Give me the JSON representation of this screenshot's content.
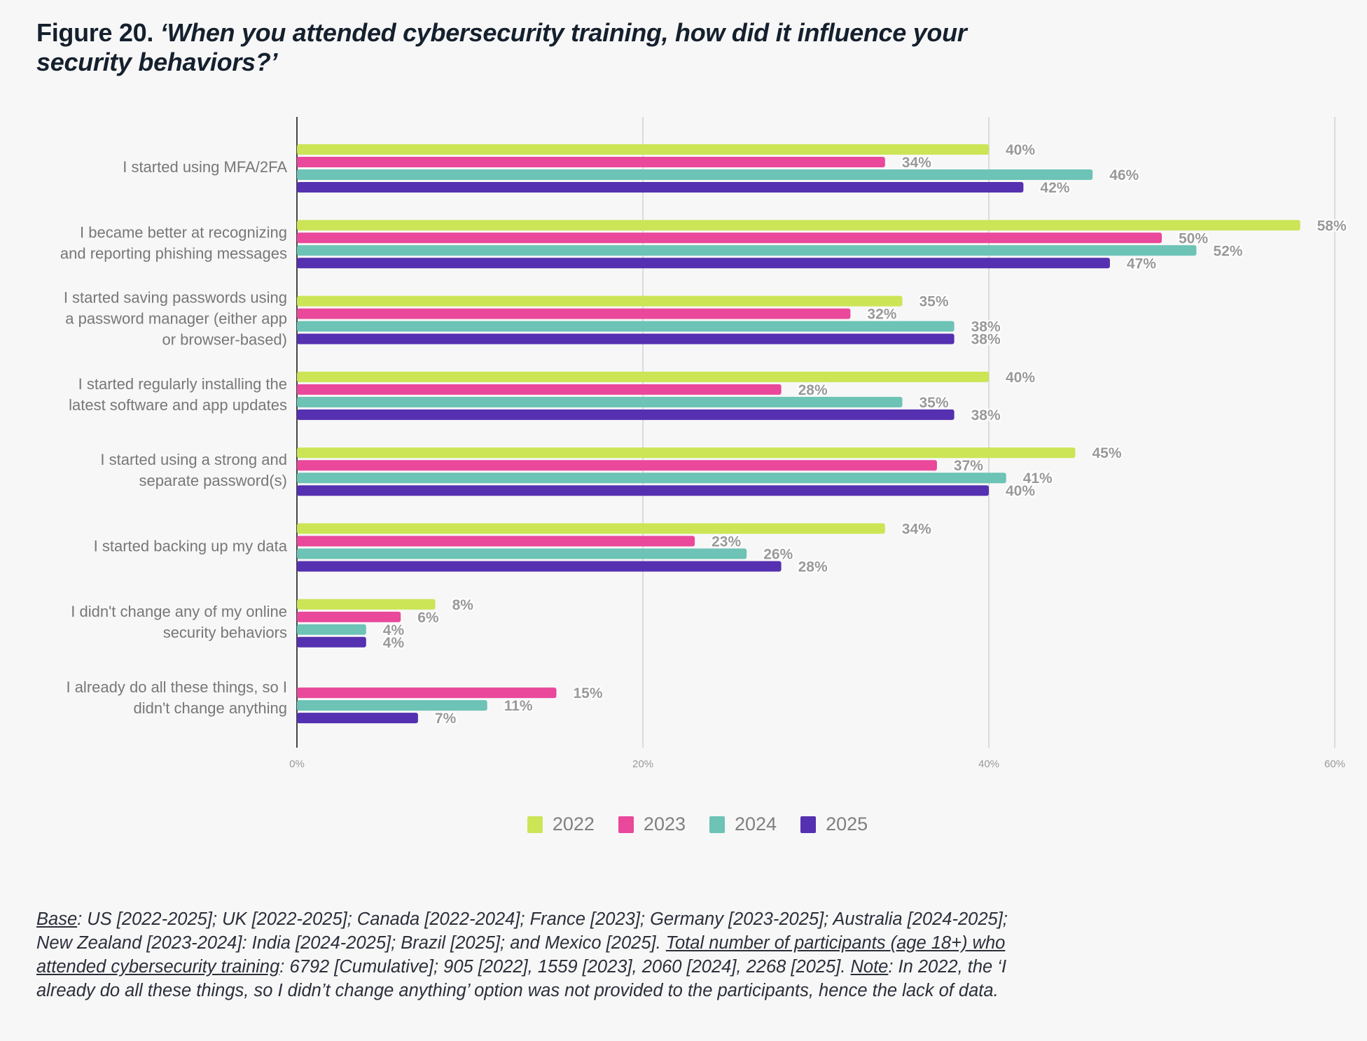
{
  "figure": {
    "label": "Figure 20.",
    "question": "‘When you attended cybersecurity training, how did it influence your security behaviors?’"
  },
  "chart_data": {
    "type": "bar",
    "orientation": "horizontal",
    "title": "Figure 20. ‘When you attended cybersecurity training, how did it influence your security behaviors?’",
    "xlabel": "",
    "ylabel": "",
    "xlim": [
      0,
      60
    ],
    "x_ticks": [
      "0%",
      "20%",
      "40%",
      "60%"
    ],
    "x_tick_values": [
      0,
      20,
      40,
      60
    ],
    "grid": true,
    "legend_position": "bottom-center",
    "categories": [
      "I started using MFA/2FA",
      "I became better at recognizing and reporting phishing messages",
      "I started saving passwords using a password manager (either app or browser-based)",
      "I started regularly installing the latest software and app updates",
      "I started using a strong and separate password(s)",
      "I started backing up my data",
      "I didn't change any of my online security behaviors",
      "I already do all these things, so I didn't change anything"
    ],
    "category_lines": [
      [
        "I started using MFA/2FA"
      ],
      [
        "I became better at recognizing",
        "and reporting phishing messages"
      ],
      [
        "I started saving passwords using",
        "a password manager (either app",
        "or browser-based)"
      ],
      [
        "I started regularly installing the",
        "latest software and app updates"
      ],
      [
        "I started using a strong and",
        "separate password(s)"
      ],
      [
        "I started backing up my data"
      ],
      [
        "I didn't change any of my online",
        "security behaviors"
      ],
      [
        "I already do all these things, so I",
        "didn't change anything"
      ]
    ],
    "series": [
      {
        "name": "2022",
        "color": "#cbe556",
        "values": [
          40,
          58,
          35,
          40,
          45,
          34,
          8,
          null
        ]
      },
      {
        "name": "2023",
        "color": "#e9489b",
        "values": [
          34,
          50,
          32,
          28,
          37,
          23,
          6,
          15
        ]
      },
      {
        "name": "2024",
        "color": "#6cc3b6",
        "values": [
          46,
          52,
          38,
          35,
          41,
          26,
          4,
          11
        ]
      },
      {
        "name": "2025",
        "color": "#5530b0",
        "values": [
          42,
          47,
          38,
          38,
          40,
          28,
          4,
          7
        ]
      }
    ],
    "value_suffix": "%"
  },
  "legend": [
    {
      "label": "2022",
      "color": "#cbe556"
    },
    {
      "label": "2023",
      "color": "#e9489b"
    },
    {
      "label": "2024",
      "color": "#6cc3b6"
    },
    {
      "label": "2025",
      "color": "#5530b0"
    }
  ],
  "footnote": {
    "base_label": "Base",
    "base_text": ": US [2022-2025]; UK [2022-2025]; Canada [2022-2024]; France [2023]; Germany [2023-2025]; Australia [2024-2025]; New Zealand [2023-2024]: India [2024-2025]; Brazil [2025]; and Mexico [2025]. ",
    "total_label": "Total number of participants (age 18+) who attended cybersecurity training",
    "total_text": ": 6792 [Cumulative]; 905 [2022], 1559 [2023], 2060 [2024], 2268 [2025]. ",
    "note_label": "Note",
    "note_text": ": In 2022, the ‘I already do all these things, so I didn’t change anything’ option was not provided to the participants, hence the lack of data."
  }
}
